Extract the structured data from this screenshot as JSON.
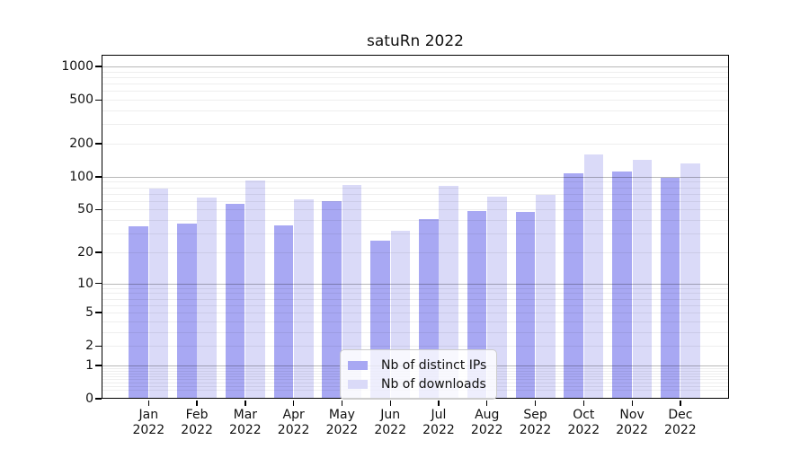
{
  "title": "satuRn 2022",
  "chart_data": {
    "type": "bar",
    "title": "satuRn 2022",
    "scale": "log1p",
    "categories": [
      "Jan",
      "Feb",
      "Mar",
      "Apr",
      "May",
      "Jun",
      "Jul",
      "Aug",
      "Sep",
      "Oct",
      "Nov",
      "Dec"
    ],
    "year_label": "2022",
    "series": [
      {
        "name": "Nb of distinct IPs",
        "color": "#a8a8f3",
        "values": [
          35,
          37,
          57,
          36,
          60,
          26,
          41,
          49,
          48,
          107,
          112,
          98
        ]
      },
      {
        "name": "Nb of downloads",
        "color": "#dadaf8",
        "values": [
          78,
          65,
          93,
          62,
          84,
          32,
          82,
          66,
          68,
          160,
          143,
          133
        ]
      }
    ],
    "y_ticks": [
      "0",
      "1",
      "2",
      "5",
      "10",
      "20",
      "50",
      "100",
      "200",
      "500",
      "1000"
    ],
    "y_tick_values": [
      0,
      1,
      2,
      5,
      10,
      20,
      50,
      100,
      200,
      500,
      1000
    ],
    "ylim": [
      0,
      1280
    ],
    "grid": {
      "major_lines": [
        1,
        10,
        100,
        1000
      ],
      "minor_multiples": [
        2,
        3,
        4,
        5,
        6,
        7,
        8,
        9
      ],
      "minor_decades": [
        -1,
        0,
        1,
        2
      ],
      "major_color": "rgba(0,0,0,0.28)",
      "minor_color": "rgba(0,0,0,0.065)"
    },
    "legend": {
      "position": "lower-center-inside"
    }
  }
}
